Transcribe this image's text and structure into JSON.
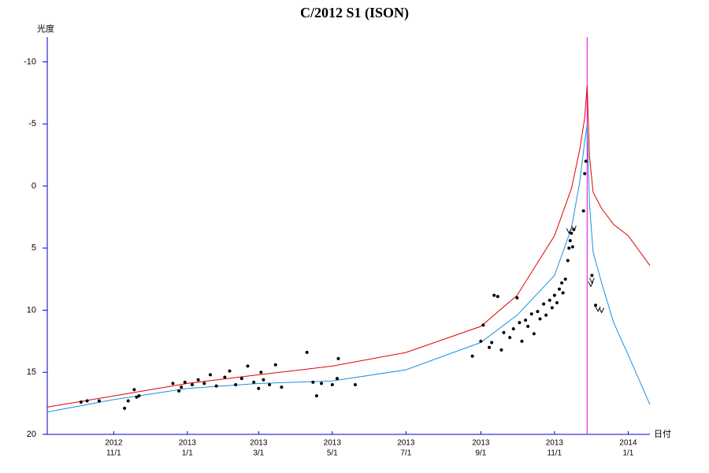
{
  "chart_data": {
    "type": "scatter",
    "title": "C/2012 S1 (ISON)",
    "y_label": "光度",
    "x_label": "日付",
    "ylim": [
      20,
      -12
    ],
    "yticks": [
      -10,
      -5,
      0,
      5,
      10,
      15,
      20
    ],
    "xlim": [
      "2012-09-07",
      "2014-01-19"
    ],
    "xticks": [
      {
        "value": "2012-11-01",
        "label": [
          "2012",
          "11/1"
        ]
      },
      {
        "value": "2013-01-01",
        "label": [
          "2013",
          "1/1"
        ]
      },
      {
        "value": "2013-03-01",
        "label": [
          "2013",
          "3/1"
        ]
      },
      {
        "value": "2013-05-01",
        "label": [
          "2013",
          "5/1"
        ]
      },
      {
        "value": "2013-07-01",
        "label": [
          "2013",
          "7/1"
        ]
      },
      {
        "value": "2013-09-01",
        "label": [
          "2013",
          "9/1"
        ]
      },
      {
        "value": "2013-11-01",
        "label": [
          "2013",
          "11/1"
        ]
      },
      {
        "value": "2014-01-01",
        "label": [
          "2014",
          "1/1"
        ]
      }
    ],
    "axis_color": "#0000cc",
    "vline": {
      "x": "2013-11-28",
      "color": "#dd00dd"
    },
    "curves": [
      {
        "color": "#e00000",
        "x": [
          "2012-09-07",
          "2012-11-01",
          "2013-01-01",
          "2013-03-01",
          "2013-05-01",
          "2013-07-01",
          "2013-09-01",
          "2013-10-01",
          "2013-11-01",
          "2013-11-15",
          "2013-11-22",
          "2013-11-26",
          "2013-11-28",
          "2013-11-30",
          "2013-12-03",
          "2013-12-10",
          "2013-12-20",
          "2014-01-01",
          "2014-01-19"
        ],
        "values": [
          17.8,
          16.9,
          15.9,
          15.2,
          14.5,
          13.4,
          11.3,
          8.8,
          4.0,
          0.2,
          -3,
          -5.5,
          -8.1,
          -2.4,
          0.5,
          1.8,
          3.1,
          4.0,
          6.4
        ]
      },
      {
        "color": "#1f8fe0",
        "x": [
          "2012-09-07",
          "2012-11-01",
          "2013-01-01",
          "2013-03-01",
          "2013-05-01",
          "2013-07-01",
          "2013-09-01",
          "2013-10-01",
          "2013-11-01",
          "2013-11-15",
          "2013-11-22",
          "2013-11-26",
          "2013-11-28",
          "2013-11-30",
          "2013-12-03",
          "2013-12-10",
          "2013-12-20",
          "2014-01-01",
          "2014-01-19"
        ],
        "values": [
          18.2,
          17.2,
          16.3,
          15.9,
          15.7,
          14.8,
          12.6,
          10.4,
          7.2,
          3.4,
          -0.4,
          -3.6,
          -4.9,
          1.5,
          5.3,
          7.8,
          11.0,
          13.6,
          17.6
        ]
      }
    ],
    "observations": {
      "color": "#000000",
      "x": [
        "2012-10-05",
        "2012-10-10",
        "2012-10-20",
        "2012-11-10",
        "2012-11-13",
        "2012-11-18",
        "2012-11-20",
        "2012-11-22",
        "2012-12-20",
        "2012-12-25",
        "2012-12-27",
        "2012-12-30",
        "2013-01-05",
        "2013-01-10",
        "2013-01-15",
        "2013-01-20",
        "2013-01-25",
        "2013-02-01",
        "2013-02-05",
        "2013-02-10",
        "2013-02-15",
        "2013-02-20",
        "2013-02-25",
        "2013-03-01",
        "2013-03-03",
        "2013-03-05",
        "2013-03-10",
        "2013-03-15",
        "2013-03-20",
        "2013-04-10",
        "2013-04-15",
        "2013-04-18",
        "2013-04-22",
        "2013-05-01",
        "2013-05-05",
        "2013-05-06",
        "2013-05-20",
        "2013-08-25",
        "2013-09-01",
        "2013-09-03",
        "2013-09-08",
        "2013-09-10",
        "2013-09-12",
        "2013-09-15",
        "2013-09-18",
        "2013-09-20",
        "2013-09-25",
        "2013-09-28",
        "2013-10-01",
        "2013-10-03",
        "2013-10-05",
        "2013-10-08",
        "2013-10-10",
        "2013-10-13",
        "2013-10-15",
        "2013-10-18",
        "2013-10-20",
        "2013-10-23",
        "2013-10-25",
        "2013-10-28",
        "2013-10-30",
        "2013-11-01",
        "2013-11-03",
        "2013-11-05",
        "2013-11-07",
        "2013-11-08",
        "2013-11-10",
        "2013-11-12",
        "2013-11-13",
        "2013-11-14",
        "2013-11-15",
        "2013-11-16",
        "2013-11-17",
        "2013-11-25",
        "2013-11-26",
        "2013-11-27",
        "2013-12-02",
        "2013-12-05"
      ],
      "values": [
        17.4,
        17.3,
        17.3,
        17.9,
        17.3,
        16.4,
        17.0,
        16.9,
        15.9,
        16.5,
        16.2,
        15.8,
        16.0,
        15.6,
        15.9,
        15.2,
        16.1,
        15.4,
        14.9,
        16.0,
        15.5,
        14.5,
        15.8,
        16.3,
        15.0,
        15.6,
        16.0,
        14.4,
        16.2,
        13.4,
        15.8,
        16.9,
        15.9,
        16.0,
        15.5,
        13.9,
        16.0,
        13.7,
        12.5,
        11.2,
        13.0,
        12.6,
        8.8,
        8.9,
        13.2,
        11.8,
        12.2,
        11.5,
        9.0,
        11.0,
        12.5,
        10.8,
        11.3,
        10.3,
        11.9,
        10.1,
        10.7,
        9.5,
        10.4,
        9.2,
        9.8,
        8.8,
        9.4,
        8.3,
        7.8,
        8.6,
        7.5,
        6.0,
        5.0,
        4.4,
        3.8,
        4.9,
        3.5,
        2.0,
        -1.0,
        -2.0,
        7.2,
        9.6
      ]
    },
    "upper_limits": {
      "color": "#000000",
      "x": [
        "2013-11-13",
        "2013-11-17",
        "2013-12-01",
        "2013-12-02",
        "2013-12-07",
        "2013-12-10"
      ],
      "values": [
        3.6,
        3.4,
        7.9,
        7.6,
        9.9,
        10.0
      ]
    }
  }
}
